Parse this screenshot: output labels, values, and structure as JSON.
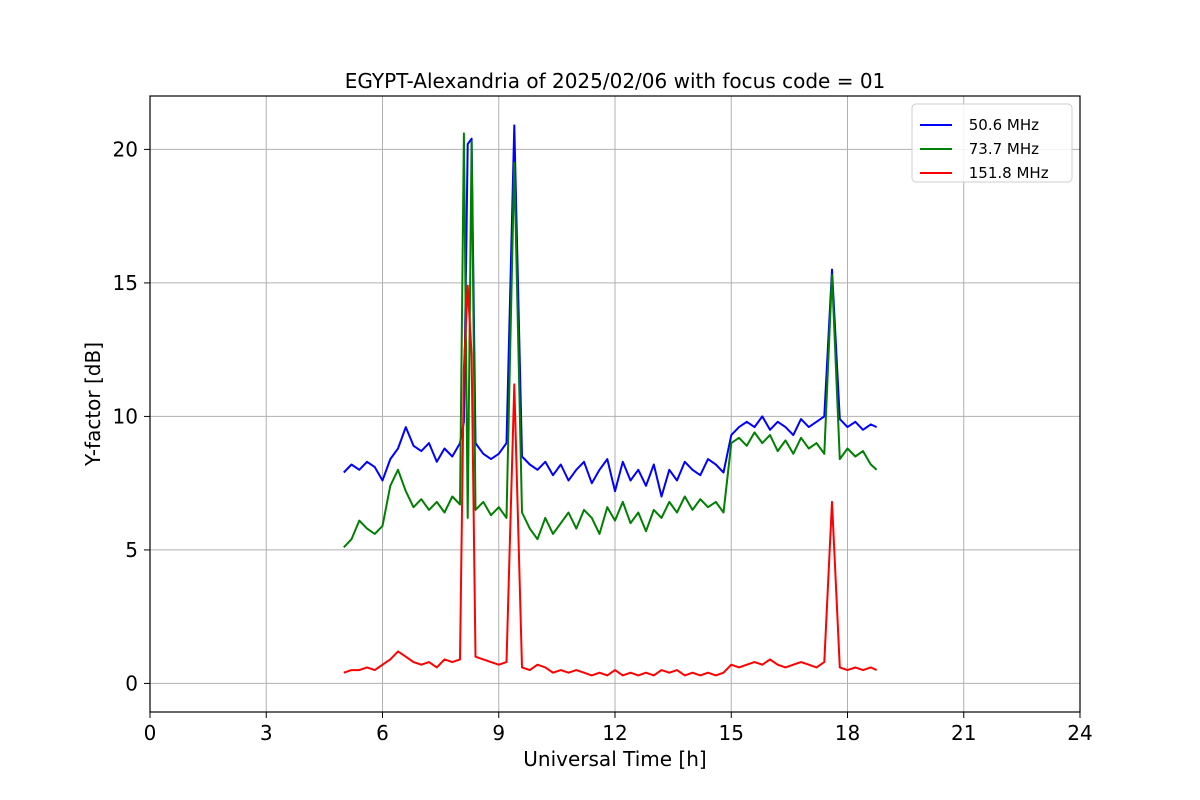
{
  "chart_data": {
    "type": "line",
    "title": "EGYPT-Alexandria of 2025/02/06 with focus code = 01",
    "xlabel": "Universal Time [h]",
    "ylabel": "Y-factor [dB]",
    "xlim": [
      0,
      24
    ],
    "ylim": [
      -1.07,
      22.0
    ],
    "xticks": [
      0,
      3,
      6,
      9,
      12,
      15,
      18,
      21,
      24
    ],
    "xtick_labels": [
      "0",
      "3",
      "6",
      "9",
      "12",
      "15",
      "18",
      "21",
      "24"
    ],
    "yticks": [
      0,
      5,
      10,
      15,
      20
    ],
    "ytick_labels": [
      "0",
      "5",
      "10",
      "15",
      "20"
    ],
    "grid": true,
    "legend_position": "top-right",
    "series": [
      {
        "name": " 50.6 MHz",
        "color": "#0000ff",
        "x": [
          5.0,
          5.2,
          5.4,
          5.6,
          5.8,
          6.0,
          6.2,
          6.4,
          6.6,
          6.8,
          7.0,
          7.2,
          7.4,
          7.6,
          7.8,
          8.0,
          8.1,
          8.2,
          8.3,
          8.4,
          8.6,
          8.8,
          9.0,
          9.2,
          9.4,
          9.6,
          9.8,
          10.0,
          10.2,
          10.4,
          10.6,
          10.8,
          11.0,
          11.2,
          11.4,
          11.6,
          11.8,
          12.0,
          12.2,
          12.4,
          12.6,
          12.8,
          13.0,
          13.2,
          13.4,
          13.6,
          13.8,
          14.0,
          14.2,
          14.4,
          14.6,
          14.8,
          15.0,
          15.2,
          15.4,
          15.6,
          15.8,
          16.0,
          16.2,
          16.4,
          16.6,
          16.8,
          17.0,
          17.2,
          17.4,
          17.6,
          17.8,
          18.0,
          18.2,
          18.4,
          18.6,
          18.75
        ],
        "y": [
          7.9,
          8.2,
          8.0,
          8.3,
          8.1,
          7.6,
          8.4,
          8.8,
          9.6,
          8.9,
          8.7,
          9.0,
          8.3,
          8.8,
          8.5,
          9.0,
          9.8,
          20.2,
          20.4,
          9.0,
          8.6,
          8.4,
          8.6,
          9.0,
          20.9,
          8.5,
          8.2,
          8.0,
          8.3,
          7.8,
          8.2,
          7.6,
          8.0,
          8.3,
          7.5,
          8.0,
          8.4,
          7.2,
          8.3,
          7.6,
          8.0,
          7.4,
          8.2,
          7.0,
          8.0,
          7.6,
          8.3,
          8.0,
          7.8,
          8.4,
          8.2,
          7.9,
          9.3,
          9.6,
          9.8,
          9.6,
          10.0,
          9.5,
          9.8,
          9.6,
          9.3,
          9.9,
          9.6,
          9.8,
          10.0,
          15.5,
          9.9,
          9.6,
          9.8,
          9.5,
          9.7,
          9.6
        ]
      },
      {
        "name": " 73.7 MHz",
        "color": "#008000",
        "x": [
          5.0,
          5.2,
          5.4,
          5.6,
          5.8,
          6.0,
          6.2,
          6.4,
          6.6,
          6.8,
          7.0,
          7.2,
          7.4,
          7.6,
          7.8,
          8.0,
          8.1,
          8.2,
          8.3,
          8.4,
          8.6,
          8.8,
          9.0,
          9.2,
          9.4,
          9.6,
          9.8,
          10.0,
          10.2,
          10.4,
          10.6,
          10.8,
          11.0,
          11.2,
          11.4,
          11.6,
          11.8,
          12.0,
          12.2,
          12.4,
          12.6,
          12.8,
          13.0,
          13.2,
          13.4,
          13.6,
          13.8,
          14.0,
          14.2,
          14.4,
          14.6,
          14.8,
          15.0,
          15.2,
          15.4,
          15.6,
          15.8,
          16.0,
          16.2,
          16.4,
          16.6,
          16.8,
          17.0,
          17.2,
          17.4,
          17.6,
          17.8,
          18.0,
          18.2,
          18.4,
          18.6,
          18.75
        ],
        "y": [
          5.1,
          5.4,
          6.1,
          5.8,
          5.6,
          5.9,
          7.4,
          8.0,
          7.2,
          6.6,
          6.9,
          6.5,
          6.8,
          6.4,
          7.0,
          6.7,
          20.6,
          6.2,
          20.3,
          6.5,
          6.8,
          6.3,
          6.6,
          6.2,
          19.5,
          6.4,
          5.8,
          5.4,
          6.2,
          5.6,
          6.0,
          6.4,
          5.8,
          6.5,
          6.2,
          5.6,
          6.6,
          6.1,
          6.8,
          6.0,
          6.4,
          5.7,
          6.5,
          6.2,
          6.8,
          6.4,
          7.0,
          6.5,
          6.9,
          6.6,
          6.8,
          6.4,
          9.0,
          9.2,
          8.9,
          9.4,
          9.0,
          9.3,
          8.7,
          9.1,
          8.6,
          9.2,
          8.8,
          9.0,
          8.6,
          15.3,
          8.4,
          8.8,
          8.5,
          8.7,
          8.2,
          8.0
        ]
      },
      {
        "name": " 151.8 MHz",
        "color": "#ff0000",
        "x": [
          5.0,
          5.2,
          5.4,
          5.6,
          5.8,
          6.0,
          6.2,
          6.4,
          6.6,
          6.8,
          7.0,
          7.2,
          7.4,
          7.6,
          7.8,
          8.0,
          8.1,
          8.2,
          8.3,
          8.4,
          8.6,
          8.8,
          9.0,
          9.2,
          9.4,
          9.6,
          9.8,
          10.0,
          10.2,
          10.4,
          10.6,
          10.8,
          11.0,
          11.2,
          11.4,
          11.6,
          11.8,
          12.0,
          12.2,
          12.4,
          12.6,
          12.8,
          13.0,
          13.2,
          13.4,
          13.6,
          13.8,
          14.0,
          14.2,
          14.4,
          14.6,
          14.8,
          15.0,
          15.2,
          15.4,
          15.6,
          15.8,
          16.0,
          16.2,
          16.4,
          16.6,
          16.8,
          17.0,
          17.2,
          17.4,
          17.6,
          17.8,
          18.0,
          18.2,
          18.4,
          18.6,
          18.75
        ],
        "y": [
          0.4,
          0.5,
          0.5,
          0.6,
          0.5,
          0.7,
          0.9,
          1.2,
          1.0,
          0.8,
          0.7,
          0.8,
          0.6,
          0.9,
          0.8,
          0.9,
          11.8,
          14.9,
          12.3,
          1.0,
          0.9,
          0.8,
          0.7,
          0.8,
          11.2,
          0.6,
          0.5,
          0.7,
          0.6,
          0.4,
          0.5,
          0.4,
          0.5,
          0.4,
          0.3,
          0.4,
          0.3,
          0.5,
          0.3,
          0.4,
          0.3,
          0.4,
          0.3,
          0.5,
          0.4,
          0.5,
          0.3,
          0.4,
          0.3,
          0.4,
          0.3,
          0.4,
          0.7,
          0.6,
          0.7,
          0.8,
          0.7,
          0.9,
          0.7,
          0.6,
          0.7,
          0.8,
          0.7,
          0.6,
          0.8,
          6.8,
          0.6,
          0.5,
          0.6,
          0.5,
          0.6,
          0.5
        ]
      }
    ]
  }
}
